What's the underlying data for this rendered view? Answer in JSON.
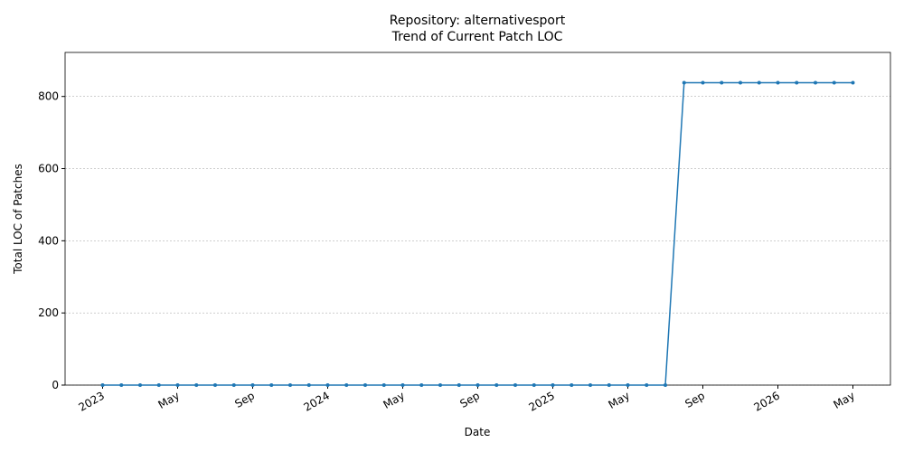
{
  "chart_data": {
    "type": "line",
    "title": "Repository: alternativesport",
    "subtitle": "Trend of Current Patch LOC",
    "x_label": "Date",
    "y_label": "Total LOC of Patches",
    "x": [
      "2023-01",
      "2023-02",
      "2023-03",
      "2023-04",
      "2023-05",
      "2023-06",
      "2023-07",
      "2023-08",
      "2023-09",
      "2023-10",
      "2023-11",
      "2023-12",
      "2024-01",
      "2024-02",
      "2024-03",
      "2024-04",
      "2024-05",
      "2024-06",
      "2024-07",
      "2024-08",
      "2024-09",
      "2024-10",
      "2024-11",
      "2024-12",
      "2025-01",
      "2025-02",
      "2025-03",
      "2025-04",
      "2025-05",
      "2025-06",
      "2025-07",
      "2025-08",
      "2025-09",
      "2025-10",
      "2025-11",
      "2025-12",
      "2026-01",
      "2026-02",
      "2026-03",
      "2026-04",
      "2026-05"
    ],
    "series": [
      {
        "name": "Current Patch LOC",
        "color": "#1f77b4",
        "values": [
          0,
          0,
          0,
          0,
          0,
          0,
          0,
          0,
          0,
          0,
          0,
          0,
          0,
          0,
          0,
          0,
          0,
          0,
          0,
          0,
          0,
          0,
          0,
          0,
          0,
          0,
          0,
          0,
          0,
          0,
          0,
          838,
          838,
          838,
          838,
          838,
          838,
          838,
          838,
          838,
          838
        ]
      }
    ],
    "xlim": [
      "2022-11",
      "2026-07"
    ],
    "xticks": [
      {
        "value": "2023-01",
        "label": "2023"
      },
      {
        "value": "2023-05",
        "label": "May"
      },
      {
        "value": "2023-09",
        "label": "Sep"
      },
      {
        "value": "2024-01",
        "label": "2024"
      },
      {
        "value": "2024-05",
        "label": "May"
      },
      {
        "value": "2024-09",
        "label": "Sep"
      },
      {
        "value": "2025-01",
        "label": "2025"
      },
      {
        "value": "2025-05",
        "label": "May"
      },
      {
        "value": "2025-09",
        "label": "Sep"
      },
      {
        "value": "2026-01",
        "label": "2026"
      },
      {
        "value": "2026-05",
        "label": "May"
      }
    ],
    "ylim": [
      0,
      922
    ],
    "yticks": [
      0,
      200,
      400,
      600,
      800
    ],
    "grid": true
  }
}
